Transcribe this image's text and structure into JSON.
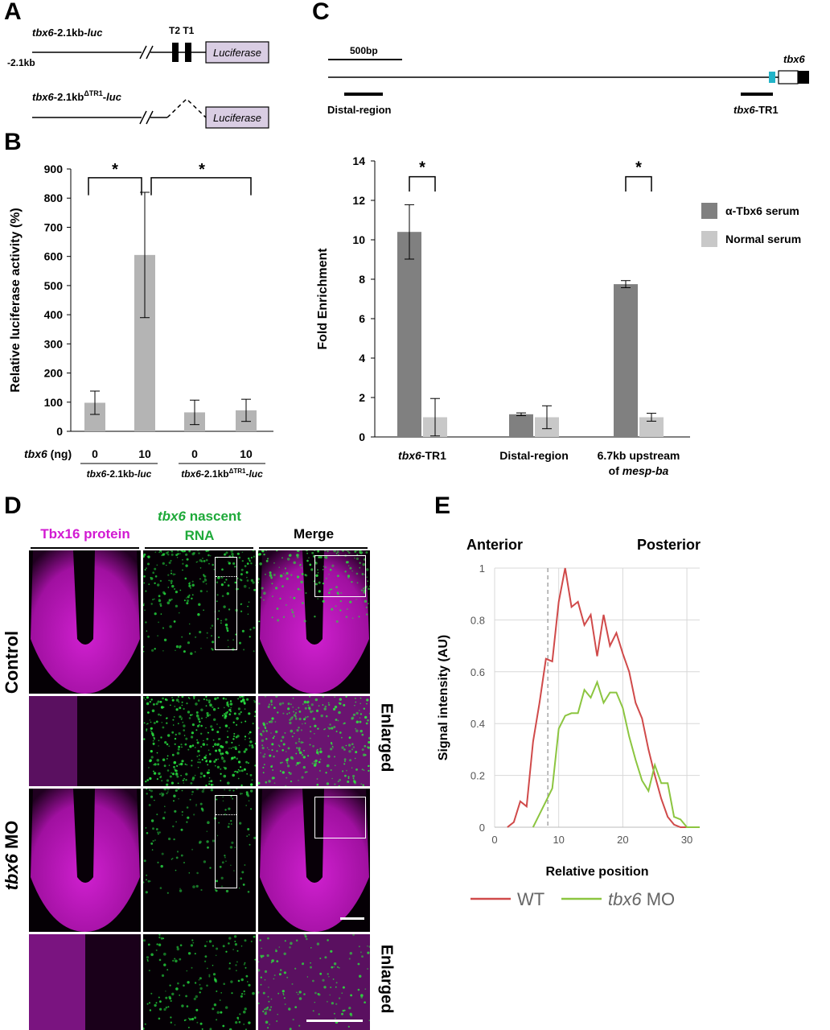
{
  "panels": {
    "a": "A",
    "b": "B",
    "c": "C",
    "d": "D",
    "e": "E"
  },
  "panel_a": {
    "construct1_label": "tbx6-2.1kb-luc",
    "construct1_italic": "tbx6",
    "construct1_mid": "-2.1kb-",
    "construct1_tail": "luc",
    "start_label": "-2.1kb",
    "t_labels": "T2 T1",
    "reporter": "Luciferase",
    "construct2_italic": "tbx6",
    "construct2_mid": "-2.1kb",
    "construct2_sup": "ΔTR1",
    "construct2_dash": "-",
    "construct2_tail": "luc"
  },
  "panel_c_map": {
    "scale_bar": "500bp",
    "gene": "tbx6",
    "distal": "Distal-region",
    "tr1_italic": "tbx6",
    "tr1_tail": "-TR1"
  },
  "panel_d": {
    "col1": "Tbx16 protein",
    "col2_italic": "tbx6",
    "col2_rest": " nascent",
    "col2_line2": "RNA",
    "col3": "Merge",
    "row_control": "Control",
    "row_mo_italic": "tbx6",
    "row_mo_rest": " MO",
    "enlarged": "Enlarged",
    "colors": {
      "magenta": "#d219d2",
      "green": "#1faa3a"
    }
  },
  "chart_data": [
    {
      "id": "B",
      "type": "bar",
      "ylabel": "Relative luciferase activity (%)",
      "ylim": [
        0,
        900
      ],
      "yticks": [
        0,
        100,
        200,
        300,
        400,
        500,
        600,
        700,
        800,
        900
      ],
      "x_row_label_italic": "tbx6",
      "x_row_label_rest": " (ng)",
      "categories": [
        "0",
        "10",
        "0",
        "10"
      ],
      "values": [
        98,
        605,
        65,
        72
      ],
      "errors": [
        40,
        215,
        42,
        38
      ],
      "groups": [
        {
          "italic": "tbx6",
          "mid": "-2.1kb-",
          "tail": "luc",
          "sup": ""
        },
        {
          "italic": "tbx6",
          "mid": "-2.1kb",
          "sup": "ΔTR1",
          "tail": "-luc"
        }
      ],
      "significance": "*",
      "bar_color": "#b4b4b4"
    },
    {
      "id": "C",
      "type": "bar",
      "ylabel": "Fold Enrichment",
      "ylim": [
        0,
        14
      ],
      "yticks": [
        0,
        2,
        4,
        6,
        8,
        10,
        12,
        14
      ],
      "categories": [
        "tbx6-TR1",
        "Distal-region",
        "6.7kb upstream of mesp-ba"
      ],
      "category_labels": [
        {
          "italic": "tbx6",
          "rest": "-TR1",
          "line2_plain": "",
          "line2_italic": ""
        },
        {
          "italic": "",
          "rest": "Distal-region",
          "line2_plain": "",
          "line2_italic": ""
        },
        {
          "italic": "",
          "rest": "6.7kb upstream",
          "line2_plain": "of ",
          "line2_italic": "mesp-ba"
        }
      ],
      "series": [
        {
          "name": "α-Tbx6 serum",
          "color": "#808080",
          "values": [
            10.4,
            1.15,
            7.75
          ],
          "errors": [
            1.38,
            0.07,
            0.18
          ]
        },
        {
          "name": "Normal serum",
          "color": "#c8c8c8",
          "values": [
            1.0,
            1.0,
            1.0
          ],
          "errors": [
            0.95,
            0.58,
            0.2
          ]
        }
      ],
      "significance": "*"
    },
    {
      "id": "E",
      "type": "line",
      "xlabel": "Relative position",
      "ylabel": "Signal intensity (AU)",
      "anterior": "Anterior",
      "posterior": "Posterior",
      "xlim": [
        0,
        32
      ],
      "ylim": [
        0,
        1
      ],
      "xticks": [
        0,
        10,
        20,
        30
      ],
      "yticks": [
        0,
        0.2,
        0.4,
        0.6,
        0.8,
        1
      ],
      "ytick_labels": [
        "0",
        "0.2",
        "0.4",
        "0.6",
        "0.8",
        "1"
      ],
      "dashed_x": 8.3,
      "series": [
        {
          "name": "WT",
          "name_italic": "",
          "name_rest": "WT",
          "color": "#d04a4a",
          "x": [
            2,
            3,
            4,
            5,
            6,
            7,
            8,
            9,
            10,
            11,
            12,
            13,
            14,
            15,
            16,
            17,
            18,
            19,
            20,
            21,
            22,
            23,
            24,
            25,
            26,
            27,
            28,
            29,
            30,
            31,
            32
          ],
          "y": [
            0,
            0.02,
            0.1,
            0.08,
            0.33,
            0.48,
            0.65,
            0.64,
            0.87,
            1.0,
            0.85,
            0.87,
            0.78,
            0.82,
            0.66,
            0.82,
            0.7,
            0.75,
            0.67,
            0.6,
            0.48,
            0.42,
            0.3,
            0.2,
            0.11,
            0.04,
            0.01,
            0.0,
            0.0,
            0.0,
            0.0
          ]
        },
        {
          "name": "tbx6 MO",
          "name_italic": "tbx6",
          "name_rest": " MO",
          "color": "#8cc540",
          "x": [
            6,
            7,
            8,
            9,
            10,
            11,
            12,
            13,
            14,
            15,
            16,
            17,
            18,
            19,
            20,
            21,
            22,
            23,
            24,
            25,
            26,
            27,
            28,
            29,
            30,
            31,
            32
          ],
          "y": [
            0,
            0.05,
            0.1,
            0.15,
            0.38,
            0.43,
            0.44,
            0.44,
            0.53,
            0.5,
            0.56,
            0.48,
            0.52,
            0.52,
            0.46,
            0.35,
            0.26,
            0.18,
            0.14,
            0.24,
            0.17,
            0.17,
            0.04,
            0.03,
            0.0,
            0.0,
            0.0
          ]
        }
      ]
    }
  ]
}
